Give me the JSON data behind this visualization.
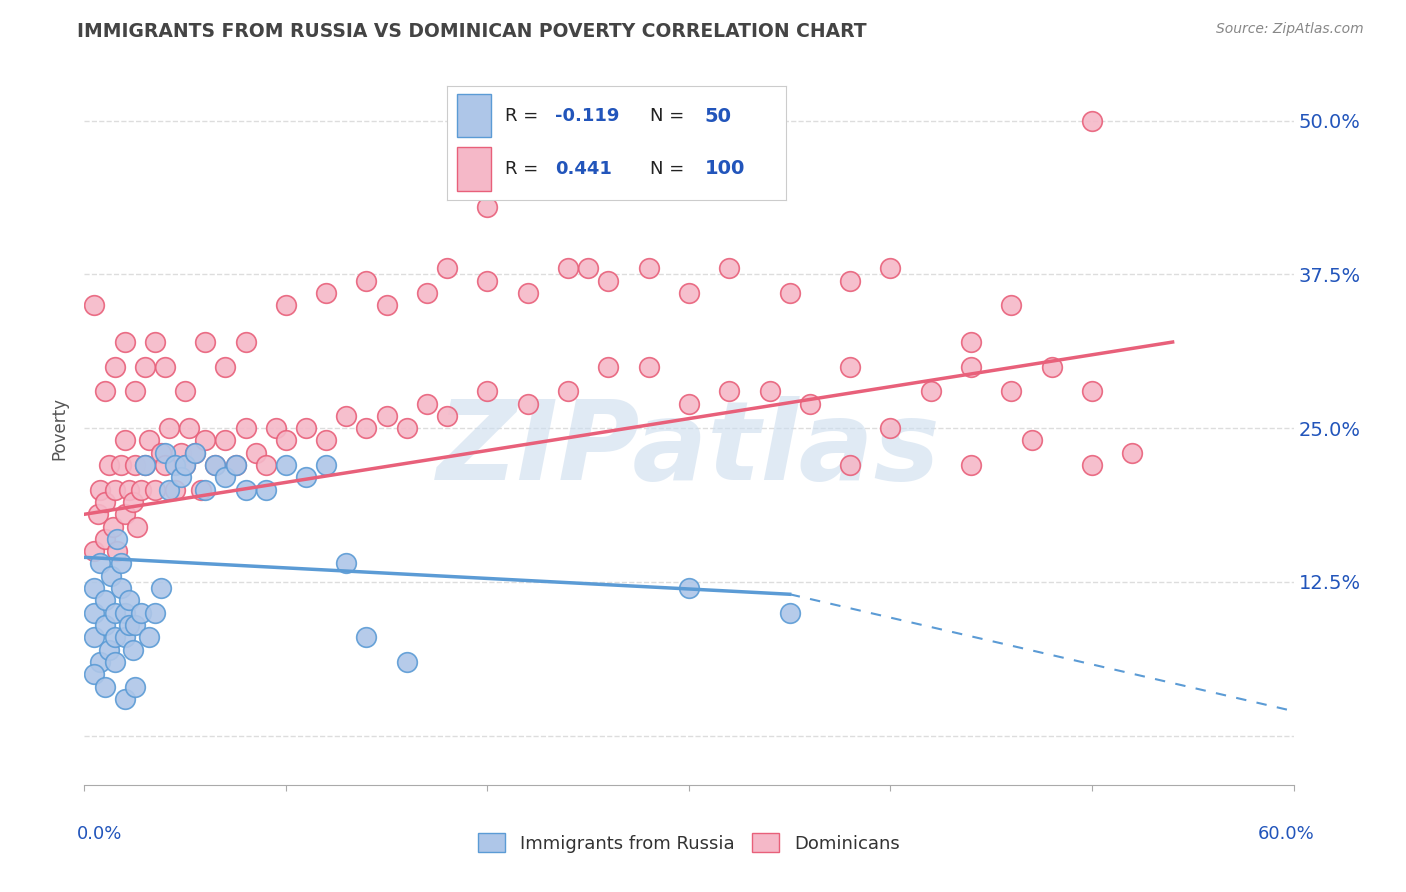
{
  "title": "IMMIGRANTS FROM RUSSIA VS DOMINICAN POVERTY CORRELATION CHART",
  "source": "Source: ZipAtlas.com",
  "ylabel": "Poverty",
  "xlim": [
    0.0,
    0.6
  ],
  "ylim": [
    -0.04,
    0.54
  ],
  "yticks": [
    0.0,
    0.125,
    0.25,
    0.375,
    0.5
  ],
  "ytick_labels": [
    "",
    "12.5%",
    "25.0%",
    "37.5%",
    "50.0%"
  ],
  "xticks": [
    0.0,
    0.1,
    0.2,
    0.3,
    0.4,
    0.5,
    0.6
  ],
  "russia_fill": "#aec6e8",
  "russia_edge": "#5b9bd5",
  "dominican_fill": "#f5b8c8",
  "dominican_edge": "#e8607a",
  "russia_line_color": "#5b9bd5",
  "dominican_line_color": "#e8607a",
  "legend_text_color": "#2255bb",
  "legend_text_black": "#222222",
  "russia_R": -0.119,
  "russia_N": 50,
  "dominican_R": 0.441,
  "dominican_N": 100,
  "watermark": "ZIPatlas",
  "watermark_color": "#ccddee",
  "title_color": "#444444",
  "russia_trend_start_x": 0.0,
  "russia_trend_start_y": 0.145,
  "russia_trend_end_solid_x": 0.35,
  "russia_trend_end_solid_y": 0.115,
  "russia_trend_end_dash_x": 0.6,
  "russia_trend_end_dash_y": 0.02,
  "dominican_trend_start_x": 0.0,
  "dominican_trend_start_y": 0.18,
  "dominican_trend_end_x": 0.54,
  "dominican_trend_end_y": 0.32,
  "russia_scatter": [
    [
      0.005,
      0.08
    ],
    [
      0.005,
      0.1
    ],
    [
      0.005,
      0.12
    ],
    [
      0.008,
      0.14
    ],
    [
      0.008,
      0.06
    ],
    [
      0.01,
      0.09
    ],
    [
      0.01,
      0.11
    ],
    [
      0.012,
      0.07
    ],
    [
      0.013,
      0.13
    ],
    [
      0.015,
      0.1
    ],
    [
      0.015,
      0.08
    ],
    [
      0.016,
      0.16
    ],
    [
      0.018,
      0.12
    ],
    [
      0.018,
      0.14
    ],
    [
      0.02,
      0.1
    ],
    [
      0.02,
      0.08
    ],
    [
      0.022,
      0.09
    ],
    [
      0.022,
      0.11
    ],
    [
      0.024,
      0.07
    ],
    [
      0.025,
      0.09
    ],
    [
      0.028,
      0.1
    ],
    [
      0.03,
      0.22
    ],
    [
      0.032,
      0.08
    ],
    [
      0.035,
      0.1
    ],
    [
      0.038,
      0.12
    ],
    [
      0.04,
      0.23
    ],
    [
      0.042,
      0.2
    ],
    [
      0.045,
      0.22
    ],
    [
      0.048,
      0.21
    ],
    [
      0.05,
      0.22
    ],
    [
      0.055,
      0.23
    ],
    [
      0.06,
      0.2
    ],
    [
      0.065,
      0.22
    ],
    [
      0.07,
      0.21
    ],
    [
      0.075,
      0.22
    ],
    [
      0.08,
      0.2
    ],
    [
      0.09,
      0.2
    ],
    [
      0.1,
      0.22
    ],
    [
      0.11,
      0.21
    ],
    [
      0.12,
      0.22
    ],
    [
      0.13,
      0.14
    ],
    [
      0.005,
      0.05
    ],
    [
      0.01,
      0.04
    ],
    [
      0.015,
      0.06
    ],
    [
      0.02,
      0.03
    ],
    [
      0.025,
      0.04
    ],
    [
      0.14,
      0.08
    ],
    [
      0.16,
      0.06
    ],
    [
      0.3,
      0.12
    ],
    [
      0.35,
      0.1
    ]
  ],
  "dominican_scatter": [
    [
      0.005,
      0.15
    ],
    [
      0.007,
      0.18
    ],
    [
      0.008,
      0.2
    ],
    [
      0.01,
      0.16
    ],
    [
      0.01,
      0.19
    ],
    [
      0.012,
      0.22
    ],
    [
      0.014,
      0.17
    ],
    [
      0.015,
      0.2
    ],
    [
      0.016,
      0.15
    ],
    [
      0.018,
      0.22
    ],
    [
      0.02,
      0.18
    ],
    [
      0.02,
      0.24
    ],
    [
      0.022,
      0.2
    ],
    [
      0.024,
      0.19
    ],
    [
      0.025,
      0.22
    ],
    [
      0.026,
      0.17
    ],
    [
      0.028,
      0.2
    ],
    [
      0.03,
      0.22
    ],
    [
      0.032,
      0.24
    ],
    [
      0.035,
      0.2
    ],
    [
      0.038,
      0.23
    ],
    [
      0.04,
      0.22
    ],
    [
      0.042,
      0.25
    ],
    [
      0.045,
      0.2
    ],
    [
      0.048,
      0.23
    ],
    [
      0.05,
      0.22
    ],
    [
      0.052,
      0.25
    ],
    [
      0.055,
      0.23
    ],
    [
      0.058,
      0.2
    ],
    [
      0.06,
      0.24
    ],
    [
      0.065,
      0.22
    ],
    [
      0.07,
      0.24
    ],
    [
      0.075,
      0.22
    ],
    [
      0.08,
      0.25
    ],
    [
      0.085,
      0.23
    ],
    [
      0.09,
      0.22
    ],
    [
      0.095,
      0.25
    ],
    [
      0.1,
      0.24
    ],
    [
      0.11,
      0.25
    ],
    [
      0.12,
      0.24
    ],
    [
      0.13,
      0.26
    ],
    [
      0.14,
      0.25
    ],
    [
      0.15,
      0.26
    ],
    [
      0.16,
      0.25
    ],
    [
      0.17,
      0.27
    ],
    [
      0.18,
      0.26
    ],
    [
      0.2,
      0.28
    ],
    [
      0.22,
      0.27
    ],
    [
      0.24,
      0.28
    ],
    [
      0.26,
      0.3
    ],
    [
      0.005,
      0.35
    ],
    [
      0.01,
      0.28
    ],
    [
      0.015,
      0.3
    ],
    [
      0.02,
      0.32
    ],
    [
      0.025,
      0.28
    ],
    [
      0.03,
      0.3
    ],
    [
      0.035,
      0.32
    ],
    [
      0.04,
      0.3
    ],
    [
      0.05,
      0.28
    ],
    [
      0.06,
      0.32
    ],
    [
      0.07,
      0.3
    ],
    [
      0.08,
      0.32
    ],
    [
      0.1,
      0.35
    ],
    [
      0.12,
      0.36
    ],
    [
      0.14,
      0.37
    ],
    [
      0.15,
      0.35
    ],
    [
      0.17,
      0.36
    ],
    [
      0.18,
      0.38
    ],
    [
      0.2,
      0.37
    ],
    [
      0.22,
      0.36
    ],
    [
      0.24,
      0.38
    ],
    [
      0.26,
      0.37
    ],
    [
      0.28,
      0.38
    ],
    [
      0.3,
      0.36
    ],
    [
      0.32,
      0.38
    ],
    [
      0.35,
      0.36
    ],
    [
      0.38,
      0.37
    ],
    [
      0.4,
      0.38
    ],
    [
      0.3,
      0.27
    ],
    [
      0.34,
      0.28
    ],
    [
      0.38,
      0.3
    ],
    [
      0.42,
      0.28
    ],
    [
      0.44,
      0.3
    ],
    [
      0.46,
      0.28
    ],
    [
      0.48,
      0.3
    ],
    [
      0.5,
      0.28
    ],
    [
      0.44,
      0.22
    ],
    [
      0.47,
      0.24
    ],
    [
      0.5,
      0.22
    ],
    [
      0.52,
      0.23
    ],
    [
      0.2,
      0.43
    ],
    [
      0.25,
      0.38
    ],
    [
      0.28,
      0.3
    ],
    [
      0.32,
      0.28
    ],
    [
      0.36,
      0.27
    ],
    [
      0.4,
      0.25
    ],
    [
      0.38,
      0.22
    ],
    [
      0.44,
      0.32
    ],
    [
      0.46,
      0.35
    ],
    [
      0.5,
      0.5
    ]
  ]
}
